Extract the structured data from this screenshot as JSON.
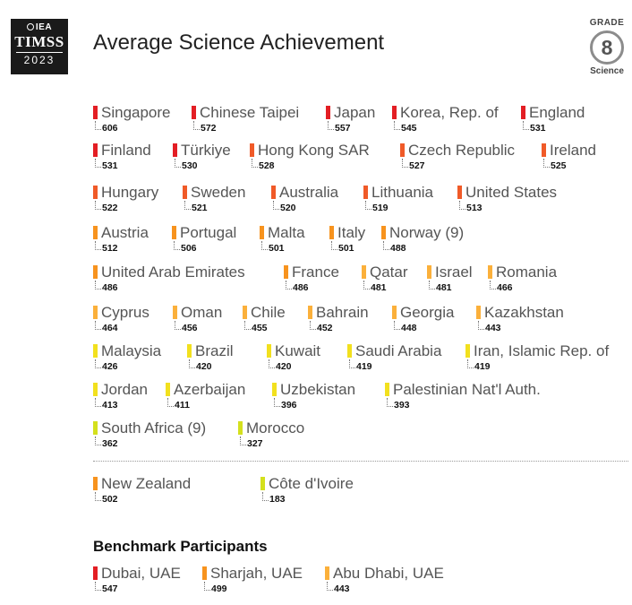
{
  "logo": {
    "org": "IEA",
    "study": "TIMSS",
    "year": "2023"
  },
  "title": "Average Science Achievement",
  "badge": {
    "label": "GRADE",
    "grade": "8",
    "subject": "Science"
  },
  "benchmark_heading": "Benchmark Participants",
  "colors": {
    "red": "#e31e24",
    "orange_red": "#f05a28",
    "orange": "#f7931e",
    "yellow_orange": "#fbb03b",
    "yellow": "#f2e01e",
    "yellow_green": "#d4e01d"
  },
  "chart_data": {
    "type": "table",
    "title": "Average Science Achievement",
    "groups": [
      {
        "name": "",
        "items": [
          {
            "country": "Singapore",
            "score": 606
          },
          {
            "country": "Chinese Taipei",
            "score": 572
          },
          {
            "country": "Japan",
            "score": 557
          },
          {
            "country": "Korea, Rep. of",
            "score": 545
          },
          {
            "country": "England",
            "score": 531
          },
          {
            "country": "Finland",
            "score": 531
          },
          {
            "country": "Türkiye",
            "score": 530
          },
          {
            "country": "Hong Kong SAR",
            "score": 528
          },
          {
            "country": "Czech Republic",
            "score": 527
          },
          {
            "country": "Ireland",
            "score": 525
          },
          {
            "country": "Hungary",
            "score": 522
          },
          {
            "country": "Sweden",
            "score": 521
          },
          {
            "country": "Australia",
            "score": 520
          },
          {
            "country": "Lithuania",
            "score": 519
          },
          {
            "country": "United States",
            "score": 513
          },
          {
            "country": "Austria",
            "score": 512
          },
          {
            "country": "Portugal",
            "score": 506
          },
          {
            "country": "Malta",
            "score": 501
          },
          {
            "country": "Italy",
            "score": 501
          },
          {
            "country": "Norway (9)",
            "score": 488
          },
          {
            "country": "United Arab Emirates",
            "score": 486
          },
          {
            "country": "France",
            "score": 486
          },
          {
            "country": "Qatar",
            "score": 481
          },
          {
            "country": "Israel",
            "score": 481
          },
          {
            "country": "Romania",
            "score": 466
          },
          {
            "country": "Cyprus",
            "score": 464
          },
          {
            "country": "Oman",
            "score": 456
          },
          {
            "country": "Chile",
            "score": 455
          },
          {
            "country": "Bahrain",
            "score": 452
          },
          {
            "country": "Georgia",
            "score": 448
          },
          {
            "country": "Kazakhstan",
            "score": 443
          },
          {
            "country": "Malaysia",
            "score": 426
          },
          {
            "country": "Brazil",
            "score": 420
          },
          {
            "country": "Kuwait",
            "score": 420
          },
          {
            "country": "Saudi Arabia",
            "score": 419
          },
          {
            "country": "Iran, Islamic Rep. of",
            "score": 419
          },
          {
            "country": "Jordan",
            "score": 413
          },
          {
            "country": "Azerbaijan",
            "score": 411
          },
          {
            "country": "Uzbekistan",
            "score": 396
          },
          {
            "country": "Palestinian Nat'l Auth.",
            "score": 393
          },
          {
            "country": "South Africa (9)",
            "score": 362
          },
          {
            "country": "Morocco",
            "score": 327
          }
        ]
      },
      {
        "name": "",
        "items": [
          {
            "country": "New Zealand",
            "score": 502
          },
          {
            "country": "Côte d'Ivoire",
            "score": 183
          }
        ]
      },
      {
        "name": "Benchmark Participants",
        "items": [
          {
            "country": "Dubai, UAE",
            "score": 547
          },
          {
            "country": "Sharjah, UAE",
            "score": 499
          },
          {
            "country": "Abu Dhabi, UAE",
            "score": 443
          }
        ]
      }
    ]
  }
}
